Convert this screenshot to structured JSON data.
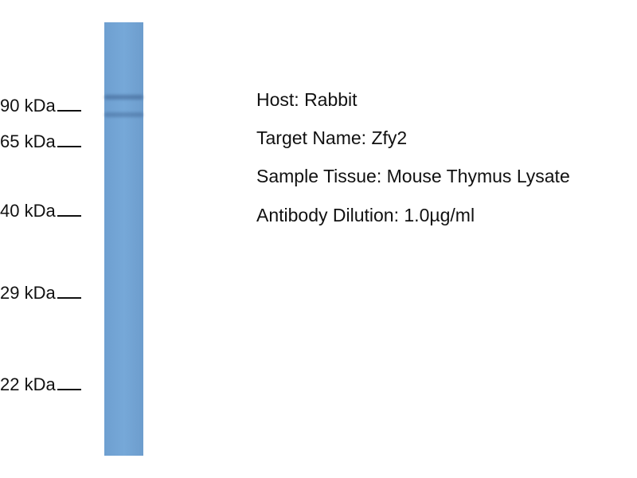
{
  "markers": [
    {
      "label": "90 kDa"
    },
    {
      "label": "65 kDa"
    },
    {
      "label": "40 kDa"
    },
    {
      "label": "29 kDa"
    },
    {
      "label": "22 kDa"
    }
  ],
  "lane": {
    "color": "#72a4d5",
    "bands": [
      "~90 kDa",
      "~70 kDa"
    ]
  },
  "info": [
    "Host: Rabbit",
    "Target Name: Zfy2",
    "Sample Tissue: Mouse Thymus Lysate",
    "Antibody Dilution: 1.0µg/ml"
  ]
}
